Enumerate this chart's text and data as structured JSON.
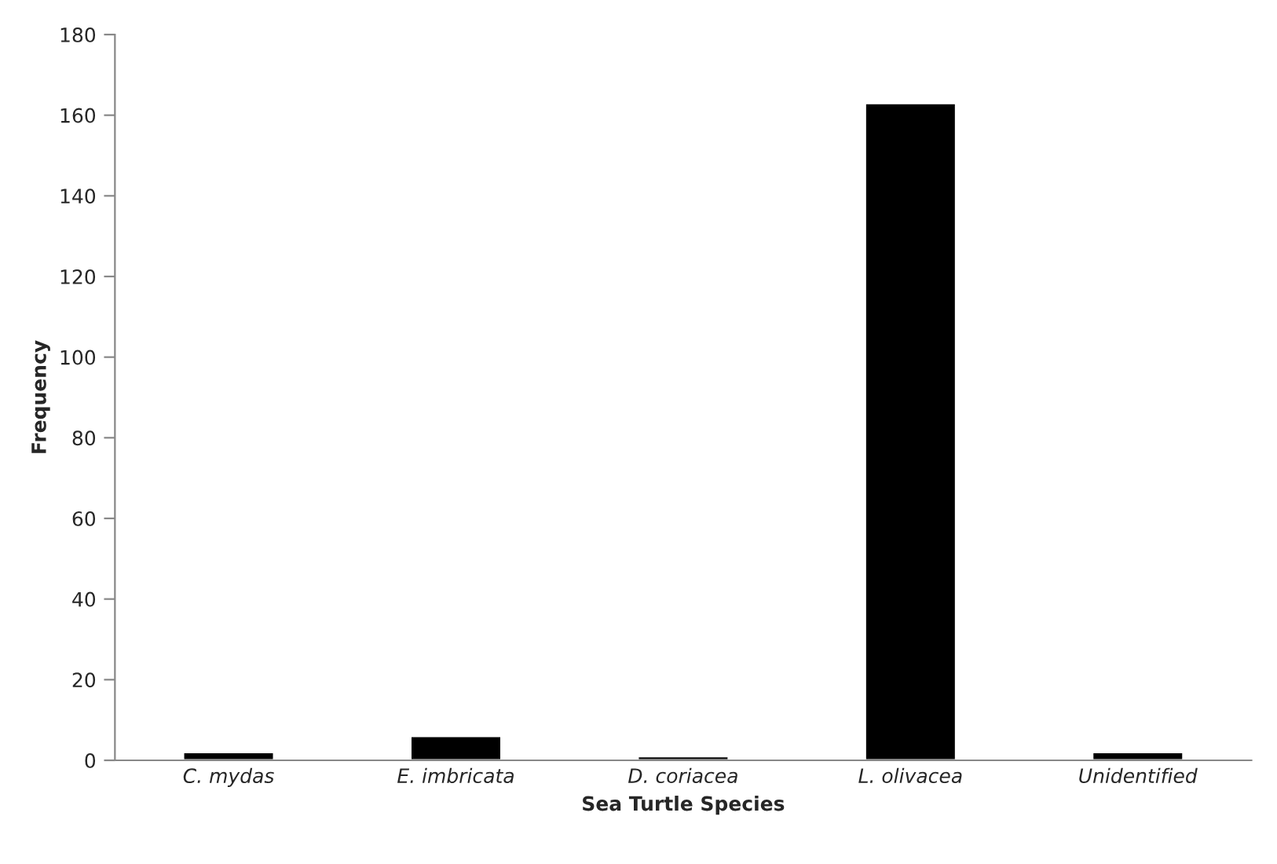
{
  "chart_data": {
    "type": "bar",
    "xlabel": "Sea Turtle Species",
    "ylabel": "Frequency",
    "categories": [
      "C. mydas",
      "E. imbricata",
      "D. coriacea",
      "L. olivacea",
      "Unidentified"
    ],
    "values": [
      2,
      6,
      1,
      163,
      2
    ],
    "color": "#000000",
    "ylim": [
      0,
      180
    ],
    "yticks": [
      0,
      20,
      40,
      60,
      80,
      100,
      120,
      140,
      160,
      180
    ],
    "grid": false,
    "legend": false
  }
}
